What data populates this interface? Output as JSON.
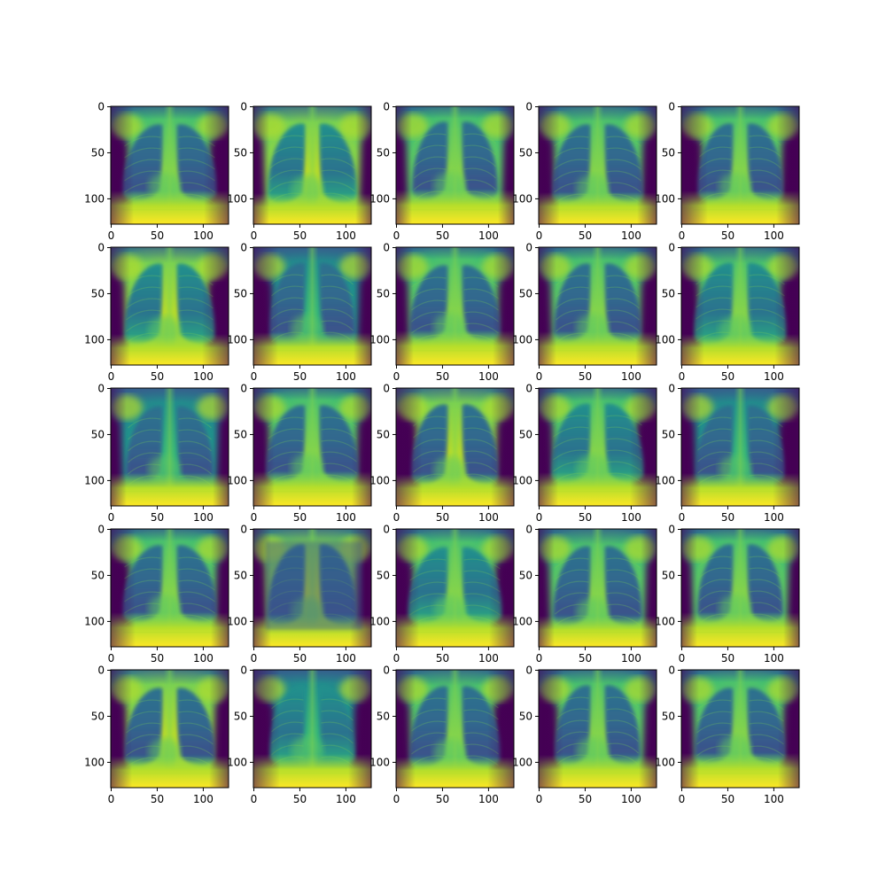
{
  "figure": {
    "rows": 5,
    "cols": 5,
    "x_ticks": [
      "0",
      "50",
      "100"
    ],
    "y_ticks": [
      "0",
      "50",
      "100"
    ],
    "tick_values": [
      0,
      50,
      100
    ],
    "image_size": 128,
    "colormap": "viridis",
    "colors": {
      "dark": "#440154",
      "mid_blue": "#3b528b",
      "teal": "#21918c",
      "green": "#5ec962",
      "yellow": "#fde725"
    }
  },
  "panels": [
    {
      "variant": 0
    },
    {
      "variant": 1
    },
    {
      "variant": 2
    },
    {
      "variant": 3
    },
    {
      "variant": 4
    },
    {
      "variant": 5
    },
    {
      "variant": 6
    },
    {
      "variant": 7
    },
    {
      "variant": 8
    },
    {
      "variant": 9
    },
    {
      "variant": 10
    },
    {
      "variant": 11
    },
    {
      "variant": 12
    },
    {
      "variant": 13
    },
    {
      "variant": 14
    },
    {
      "variant": 15
    },
    {
      "variant": 16
    },
    {
      "variant": 17
    },
    {
      "variant": 18
    },
    {
      "variant": 19
    },
    {
      "variant": 20
    },
    {
      "variant": 21
    },
    {
      "variant": 22
    },
    {
      "variant": 23
    },
    {
      "variant": 24
    }
  ]
}
